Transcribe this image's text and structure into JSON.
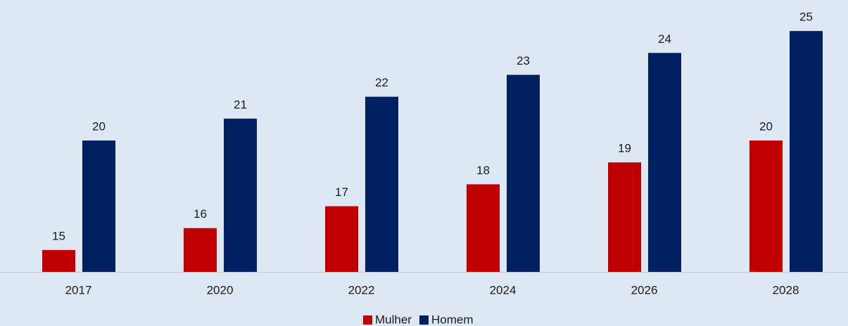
{
  "chart_data": {
    "type": "bar",
    "categories": [
      "2017",
      "2020",
      "2022",
      "2024",
      "2026",
      "2028"
    ],
    "series": [
      {
        "name": "Mulher",
        "color": "#c00000",
        "values": [
          15,
          16,
          17,
          18,
          19,
          20
        ]
      },
      {
        "name": "Homem",
        "color": "#002060",
        "values": [
          20,
          21,
          22,
          23,
          24,
          25
        ]
      }
    ],
    "ylim": [
      14,
      26
    ],
    "legend": "bottom"
  }
}
